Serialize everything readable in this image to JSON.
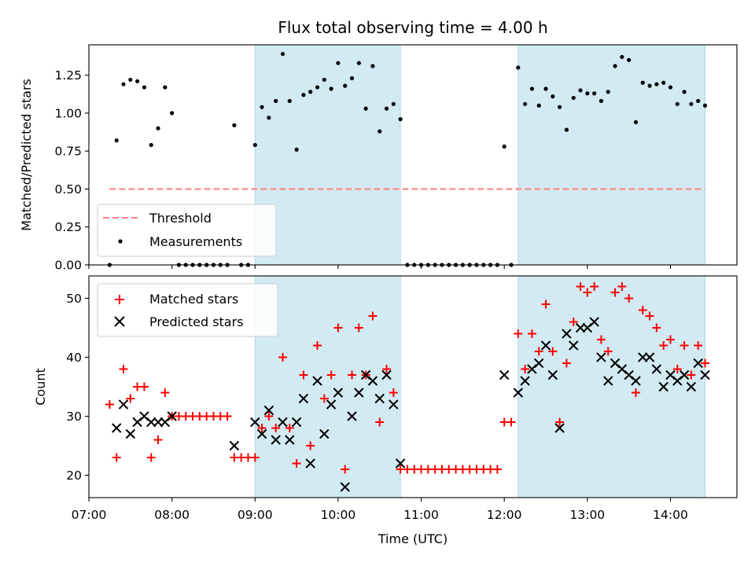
{
  "chart_data": {
    "title": "Flux total observing time = 4.00 h",
    "type": "scatter",
    "xlabel": "Time (UTC)",
    "x_ticks": [
      "07:00",
      "08:00",
      "09:00",
      "10:00",
      "11:00",
      "12:00",
      "13:00",
      "14:00"
    ],
    "xlim": [
      "07:00",
      "14:48"
    ],
    "shaded_intervals": [
      [
        "09:00",
        "10:45"
      ],
      [
        "12:10",
        "14:25"
      ]
    ],
    "shade_color": "#add8e6",
    "top": {
      "ylabel": "Matched/Predicted stars",
      "ylim": [
        0,
        1.45
      ],
      "y_ticks": [
        "0.00",
        "0.25",
        "0.50",
        "0.75",
        "1.00",
        "1.25"
      ],
      "legend_location": "lower-left",
      "threshold": {
        "name": "Threshold",
        "value": 0.5,
        "x_range": [
          "07:15",
          "14:25"
        ],
        "color": "#ff7f7f"
      },
      "measurements": {
        "name": "Measurements",
        "color": "#000000",
        "x": [
          "07:15",
          "07:20",
          "07:25",
          "07:30",
          "07:35",
          "07:40",
          "07:45",
          "07:50",
          "07:55",
          "08:00",
          "08:05",
          "08:10",
          "08:15",
          "08:20",
          "08:25",
          "08:30",
          "08:35",
          "08:40",
          "08:45",
          "08:50",
          "08:55",
          "09:00",
          "09:05",
          "09:10",
          "09:15",
          "09:20",
          "09:25",
          "09:30",
          "09:35",
          "09:40",
          "09:45",
          "09:50",
          "09:55",
          "10:00",
          "10:05",
          "10:10",
          "10:15",
          "10:20",
          "10:25",
          "10:30",
          "10:35",
          "10:40",
          "10:45",
          "10:50",
          "10:55",
          "11:00",
          "11:05",
          "11:10",
          "11:15",
          "11:20",
          "11:25",
          "11:30",
          "11:35",
          "11:40",
          "11:45",
          "11:50",
          "11:55",
          "12:00",
          "12:05",
          "12:10",
          "12:15",
          "12:20",
          "12:25",
          "12:30",
          "12:35",
          "12:40",
          "12:45",
          "12:50",
          "12:55",
          "13:00",
          "13:05",
          "13:10",
          "13:15",
          "13:20",
          "13:25",
          "13:30",
          "13:35",
          "13:40",
          "13:45",
          "13:50",
          "13:55",
          "14:00",
          "14:05",
          "14:10",
          "14:15",
          "14:20",
          "14:25"
        ],
        "y": [
          0.0,
          0.82,
          1.19,
          1.22,
          1.21,
          1.17,
          0.79,
          0.9,
          1.17,
          1.0,
          0.0,
          0.0,
          0.0,
          0.0,
          0.0,
          0.0,
          0.0,
          0.0,
          0.92,
          0.0,
          0.0,
          0.79,
          1.04,
          0.97,
          1.08,
          1.39,
          1.08,
          0.76,
          1.12,
          1.14,
          1.17,
          1.22,
          1.16,
          1.33,
          1.18,
          1.23,
          1.33,
          1.03,
          1.31,
          0.88,
          1.03,
          1.06,
          0.96,
          0.0,
          0.0,
          0.0,
          0.0,
          0.0,
          0.0,
          0.0,
          0.0,
          0.0,
          0.0,
          0.0,
          0.0,
          0.0,
          0.0,
          0.78,
          0.0,
          1.3,
          1.06,
          1.16,
          1.05,
          1.16,
          1.11,
          1.04,
          0.89,
          1.1,
          1.15,
          1.13,
          1.13,
          1.08,
          1.14,
          1.31,
          1.37,
          1.35,
          0.94,
          1.2,
          1.18,
          1.19,
          1.2,
          1.17,
          1.06,
          1.14,
          1.06,
          1.08,
          1.05
        ]
      }
    },
    "bottom": {
      "ylabel": "Count",
      "ylim": [
        16.2,
        53.8
      ],
      "y_ticks": [
        "20",
        "30",
        "40",
        "50"
      ],
      "legend_location": "upper-left",
      "series": [
        {
          "name": "Matched stars",
          "marker": "plus",
          "color": "#ff0000",
          "x": [
            "07:15",
            "07:20",
            "07:25",
            "07:30",
            "07:35",
            "07:40",
            "07:45",
            "07:50",
            "07:55",
            "08:00",
            "08:05",
            "08:10",
            "08:15",
            "08:20",
            "08:25",
            "08:30",
            "08:35",
            "08:40",
            "08:45",
            "08:50",
            "08:55",
            "09:00",
            "09:05",
            "09:10",
            "09:15",
            "09:20",
            "09:25",
            "09:30",
            "09:35",
            "09:40",
            "09:45",
            "09:50",
            "09:55",
            "10:00",
            "10:05",
            "10:10",
            "10:15",
            "10:20",
            "10:25",
            "10:30",
            "10:35",
            "10:40",
            "10:45",
            "10:50",
            "10:55",
            "11:00",
            "11:05",
            "11:10",
            "11:15",
            "11:20",
            "11:25",
            "11:30",
            "11:35",
            "11:40",
            "11:45",
            "11:50",
            "11:55",
            "12:00",
            "12:05",
            "12:10",
            "12:15",
            "12:20",
            "12:25",
            "12:30",
            "12:35",
            "12:40",
            "12:45",
            "12:50",
            "12:55",
            "13:00",
            "13:05",
            "13:10",
            "13:15",
            "13:20",
            "13:25",
            "13:30",
            "13:35",
            "13:40",
            "13:45",
            "13:50",
            "13:55",
            "14:00",
            "14:05",
            "14:10",
            "14:15",
            "14:20",
            "14:25"
          ],
          "y": [
            32,
            23,
            38,
            33,
            35,
            35,
            23,
            26,
            34,
            30,
            30,
            30,
            30,
            30,
            30,
            30,
            30,
            30,
            23,
            23,
            23,
            23,
            28,
            30,
            28,
            40,
            28,
            22,
            37,
            25,
            42,
            33,
            37,
            45,
            21,
            37,
            45,
            37,
            47,
            29,
            38,
            34,
            21,
            21,
            21,
            21,
            21,
            21,
            21,
            21,
            21,
            21,
            21,
            21,
            21,
            21,
            21,
            29,
            29,
            44,
            38,
            44,
            41,
            49,
            41,
            29,
            39,
            46,
            52,
            51,
            52,
            43,
            41,
            51,
            52,
            50,
            34,
            48,
            47,
            45,
            42,
            43,
            38,
            42,
            37,
            42,
            39
          ]
        },
        {
          "name": "Predicted stars",
          "marker": "x",
          "color": "#000000",
          "x": [
            "07:20",
            "07:25",
            "07:30",
            "07:35",
            "07:40",
            "07:45",
            "07:50",
            "07:55",
            "08:00",
            "08:45",
            "09:00",
            "09:05",
            "09:10",
            "09:15",
            "09:20",
            "09:25",
            "09:30",
            "09:35",
            "09:40",
            "09:45",
            "09:50",
            "09:55",
            "10:00",
            "10:05",
            "10:10",
            "10:15",
            "10:20",
            "10:25",
            "10:30",
            "10:35",
            "10:40",
            "10:45",
            "12:00",
            "12:10",
            "12:15",
            "12:20",
            "12:25",
            "12:30",
            "12:35",
            "12:40",
            "12:45",
            "12:50",
            "12:55",
            "13:00",
            "13:05",
            "13:10",
            "13:15",
            "13:20",
            "13:25",
            "13:30",
            "13:35",
            "13:40",
            "13:45",
            "13:50",
            "13:55",
            "14:00",
            "14:05",
            "14:10",
            "14:15",
            "14:20",
            "14:25"
          ],
          "y": [
            28,
            32,
            27,
            29,
            30,
            29,
            29,
            29,
            30,
            25,
            29,
            27,
            31,
            26,
            29,
            26,
            29,
            33,
            22,
            36,
            27,
            32,
            34,
            18,
            30,
            34,
            37,
            36,
            33,
            37,
            32,
            22,
            37,
            34,
            36,
            38,
            39,
            42,
            37,
            28,
            44,
            42,
            45,
            45,
            46,
            40,
            36,
            39,
            38,
            37,
            36,
            40,
            40,
            38,
            35,
            37,
            36,
            37,
            35,
            39,
            37
          ]
        }
      ]
    }
  }
}
